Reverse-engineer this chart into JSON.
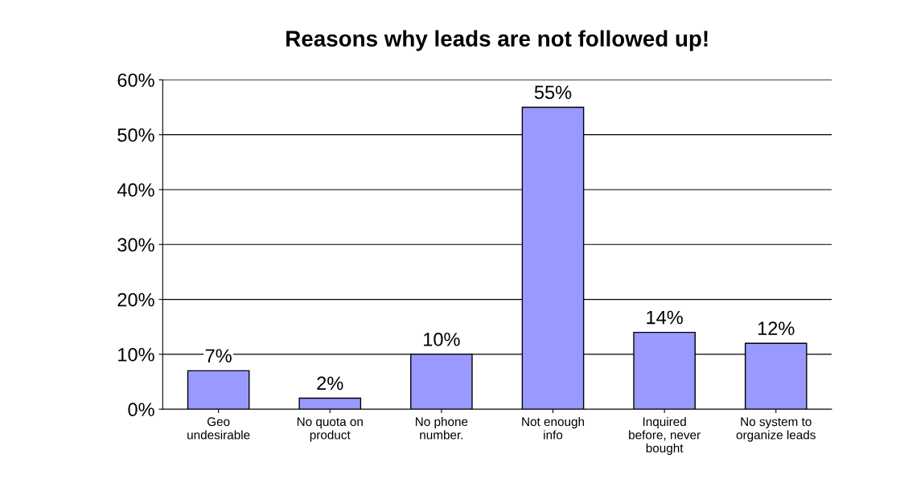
{
  "chart_data": {
    "type": "bar",
    "title": "Reasons why leads are not followed up!",
    "categories": [
      "Geo\nundesirable",
      "No quota on\nproduct",
      "No phone\nnumber.",
      "Not enough\ninfo",
      "Inquired\nbefore, never\nbought",
      "No system to\norganize leads"
    ],
    "values": [
      7,
      2,
      10,
      55,
      14,
      12
    ],
    "value_labels": [
      "7%",
      "2%",
      "10%",
      "55%",
      "14%",
      "12%"
    ],
    "color": "#9999ff",
    "ylim": [
      0,
      60
    ],
    "yticks": [
      {
        "value": 0,
        "label": "0%"
      },
      {
        "value": 10,
        "label": "10%"
      },
      {
        "value": 20,
        "label": "20%"
      },
      {
        "value": 30,
        "label": "30%"
      },
      {
        "value": 40,
        "label": "40%"
      },
      {
        "value": 50,
        "label": "50%"
      },
      {
        "value": 60,
        "label": "60%"
      }
    ],
    "grid": "y"
  }
}
